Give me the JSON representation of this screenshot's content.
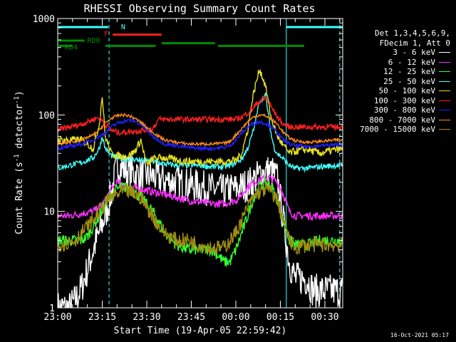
{
  "chart_data": {
    "type": "line",
    "title": "RHESSI Observing Summary Count Rates",
    "xlabel": "Start Time (19-Apr-05 22:59:42)",
    "ylabel_pre": "Count Rate (s",
    "ylabel_sup": "-1",
    "ylabel_post": " detector",
    "ylabel_sup2": "-1",
    "ylabel_end": ")",
    "yscale": "log",
    "xlim": [
      0,
      96
    ],
    "ylim": [
      1,
      1000
    ],
    "x_ticks": [
      {
        "x": 0,
        "label": "23:00"
      },
      {
        "x": 15,
        "label": "23:15"
      },
      {
        "x": 30,
        "label": "23:30"
      },
      {
        "x": 45,
        "label": "23:45"
      },
      {
        "x": 60,
        "label": "00:00"
      },
      {
        "x": 75,
        "label": "00:15"
      },
      {
        "x": 90,
        "label": "00:30"
      }
    ],
    "y_ticks": [
      {
        "y": 1,
        "label": "1"
      },
      {
        "y": 10,
        "label": "10"
      },
      {
        "y": 100,
        "label": "100"
      },
      {
        "y": 1000,
        "label": "1000"
      }
    ],
    "legend_header": [
      "Det 1,3,4,5,6,9,",
      "FDecim 1, Att 0"
    ],
    "series": [
      {
        "name": "3 - 6 keV",
        "color": "#ffffff",
        "x": [
          0,
          2,
          4,
          6,
          8,
          10,
          12,
          14,
          16,
          18,
          20,
          24,
          28,
          32,
          34,
          36,
          40,
          44,
          48,
          52,
          54,
          56,
          58,
          60,
          62,
          64,
          66,
          68,
          70,
          72,
          74,
          76,
          78,
          80,
          82,
          84,
          86,
          90,
          94
        ],
        "y": [
          1,
          1,
          1,
          1.2,
          1.6,
          2.5,
          4,
          6,
          9,
          15,
          30,
          26,
          24,
          23,
          22,
          21,
          20,
          19,
          18,
          17,
          17,
          16,
          17,
          17,
          18,
          19,
          21,
          24,
          26,
          26,
          22,
          8,
          3,
          2,
          2,
          2,
          1.5,
          1.5,
          1.5
        ]
      },
      {
        "name": "6 - 12 keV",
        "color": "#ff30ff",
        "x": [
          0,
          4,
          8,
          12,
          14,
          16,
          18,
          20,
          24,
          28,
          32,
          36,
          40,
          44,
          48,
          52,
          56,
          60,
          62,
          64,
          66,
          68,
          70,
          72,
          74,
          76,
          78,
          80,
          84,
          88,
          94
        ],
        "y": [
          9,
          9,
          9.5,
          10,
          11,
          13,
          17,
          20,
          18,
          17,
          16,
          15,
          14,
          13,
          12.5,
          12,
          12,
          13,
          15,
          18,
          20,
          21,
          22,
          22,
          20,
          15,
          10,
          9,
          9,
          9,
          9
        ]
      },
      {
        "name": "12 - 25 keV",
        "color": "#30ff30",
        "x": [
          0,
          4,
          8,
          10,
          12,
          14,
          16,
          18,
          20,
          22,
          24,
          28,
          32,
          34,
          36,
          40,
          44,
          48,
          52,
          54,
          56,
          58,
          60,
          62,
          64,
          66,
          68,
          70,
          72,
          74,
          76,
          78,
          80,
          82,
          84,
          88,
          94
        ],
        "y": [
          5,
          5,
          5,
          5.5,
          7,
          9,
          12,
          15,
          17,
          18,
          17,
          14,
          10,
          8,
          6,
          4.5,
          4,
          4,
          4,
          3.5,
          3,
          3,
          4,
          6,
          9,
          14,
          18,
          20,
          18,
          13,
          8,
          5,
          4.5,
          4.5,
          4.5,
          5,
          5
        ]
      },
      {
        "name": "25 - 50 keV",
        "color": "#40ffff",
        "x": [
          0,
          4,
          8,
          10,
          12,
          14,
          15,
          16,
          18,
          20,
          22,
          24,
          28,
          32,
          34,
          36,
          40,
          44,
          48,
          52,
          54,
          56,
          58,
          60,
          62,
          64,
          66,
          68,
          70,
          72,
          73,
          74,
          76,
          78,
          80,
          84,
          88,
          94
        ],
        "y": [
          28,
          30,
          32,
          34,
          36,
          45,
          60,
          45,
          38,
          36,
          35,
          35,
          34,
          33,
          32,
          31,
          30,
          30,
          30,
          29,
          29,
          29,
          30,
          32,
          35,
          45,
          70,
          140,
          160,
          60,
          45,
          40,
          35,
          30,
          28,
          28,
          29,
          30
        ]
      },
      {
        "name": "50 - 100 keV",
        "color": "#e8e020",
        "x": [
          0,
          4,
          8,
          10,
          12,
          14,
          15,
          16,
          18,
          20,
          22,
          24,
          26,
          28,
          30,
          32,
          34,
          36,
          40,
          44,
          48,
          52,
          56,
          58,
          60,
          62,
          64,
          66,
          68,
          70,
          72,
          74,
          76,
          78,
          80,
          84,
          88,
          94
        ],
        "y": [
          55,
          55,
          55,
          50,
          45,
          80,
          160,
          60,
          40,
          38,
          37,
          38,
          42,
          55,
          30,
          35,
          36,
          36,
          34,
          33,
          33,
          33,
          33,
          33,
          34,
          40,
          70,
          170,
          300,
          200,
          90,
          60,
          48,
          40,
          42,
          44,
          40,
          44
        ]
      },
      {
        "name": "100 - 300 keV",
        "color": "#ff2020",
        "x": [
          0,
          4,
          8,
          10,
          12,
          14,
          16,
          18,
          20,
          22,
          24,
          26,
          28,
          30,
          32,
          34,
          36,
          40,
          44,
          48,
          52,
          56,
          58,
          60,
          62,
          64,
          66,
          68,
          70,
          72,
          74,
          76,
          78,
          80,
          84,
          88,
          94
        ],
        "y": [
          70,
          75,
          80,
          85,
          90,
          95,
          80,
          70,
          66,
          66,
          67,
          68,
          69,
          70,
          72,
          90,
          90,
          90,
          90,
          90,
          90,
          90,
          90,
          90,
          95,
          105,
          120,
          140,
          150,
          120,
          95,
          80,
          75,
          75,
          75,
          75,
          75
        ]
      },
      {
        "name": "300 - 800 keV",
        "color": "#2020ff",
        "x": [
          0,
          4,
          8,
          12,
          14,
          16,
          18,
          20,
          22,
          24,
          26,
          28,
          30,
          32,
          34,
          36,
          40,
          44,
          48,
          52,
          56,
          58,
          60,
          62,
          64,
          66,
          68,
          70,
          72,
          74,
          76,
          78,
          80,
          84,
          88,
          94
        ],
        "y": [
          45,
          47,
          50,
          55,
          60,
          65,
          75,
          82,
          86,
          88,
          86,
          80,
          70,
          60,
          55,
          50,
          48,
          46,
          45,
          45,
          46,
          48,
          55,
          65,
          75,
          82,
          85,
          82,
          75,
          65,
          55,
          50,
          48,
          47,
          48,
          49
        ]
      },
      {
        "name": "800 - 7000 keV",
        "color": "#ff8c1a",
        "x": [
          0,
          4,
          8,
          12,
          14,
          16,
          18,
          20,
          22,
          24,
          26,
          28,
          30,
          32,
          34,
          36,
          40,
          44,
          48,
          52,
          56,
          58,
          60,
          62,
          64,
          66,
          68,
          70,
          72,
          74,
          76,
          78,
          80,
          84,
          88,
          94
        ],
        "y": [
          50,
          52,
          55,
          62,
          70,
          82,
          92,
          98,
          100,
          98,
          92,
          84,
          74,
          66,
          60,
          55,
          52,
          50,
          50,
          50,
          51,
          53,
          62,
          72,
          85,
          95,
          100,
          98,
          90,
          80,
          66,
          58,
          54,
          52,
          53,
          55
        ]
      },
      {
        "name": "7000 - 15000 keV",
        "color": "#a08c10",
        "x": [
          0,
          4,
          6,
          8,
          10,
          12,
          14,
          16,
          18,
          20,
          22,
          24,
          26,
          28,
          30,
          32,
          34,
          36,
          40,
          44,
          48,
          52,
          56,
          58,
          60,
          62,
          64,
          66,
          68,
          70,
          72,
          74,
          76,
          78,
          80,
          84,
          88,
          94
        ],
        "y": [
          4.5,
          4.8,
          5,
          6,
          7,
          8,
          10,
          12,
          14,
          15,
          16,
          16,
          15,
          14,
          11,
          9,
          7,
          6,
          5,
          5,
          4.5,
          4.2,
          4.2,
          5,
          6,
          8,
          11,
          14,
          16,
          17,
          16,
          13,
          8,
          5,
          4.2,
          4.5,
          4.5,
          4.5
        ]
      }
    ],
    "flag_bars": [
      {
        "label": "N",
        "color": "#40ffff",
        "y": 815,
        "segments": [
          [
            0,
            17
          ],
          [
            77,
            96
          ]
        ]
      },
      {
        "label": "F",
        "color": "#ff2020",
        "y": 680,
        "segments": [
          [
            18.5,
            35
          ]
        ]
      },
      {
        "label": "RD0",
        "color": "#008c00",
        "y": 590,
        "segments": [
          [
            0,
            9
          ]
        ]
      },
      {
        "label": "",
        "color": "#008c00",
        "y": 555,
        "segments": [
          [
            35,
            53
          ]
        ]
      },
      {
        "label": "RD4",
        "color": "#008c00",
        "y": 520,
        "segments": [
          [
            0,
            5
          ],
          [
            16,
            33
          ],
          [
            54,
            83
          ]
        ]
      }
    ],
    "vlines": [
      {
        "x": 17.3,
        "color": "#40ffff",
        "dash": true
      },
      {
        "x": 77.0,
        "color": "#40ffff",
        "dash": false
      },
      {
        "x": 95.0,
        "color": "#40ffff",
        "dash": true
      }
    ]
  },
  "timestamp": "16-Oct-2021 05:17"
}
